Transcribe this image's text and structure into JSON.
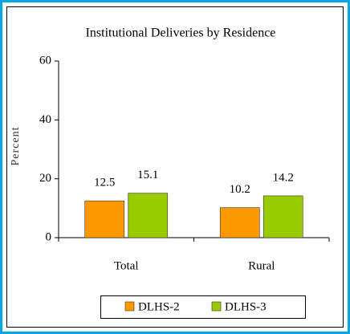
{
  "chart_data": {
    "type": "bar",
    "title": "Institutional Deliveries by Residence",
    "ylabel": "Percent",
    "categories": [
      "Total",
      "Rural"
    ],
    "series": [
      {
        "name": "DLHS-2",
        "color": "#ff9900",
        "values": [
          12.5,
          10.2
        ]
      },
      {
        "name": "DLHS-3",
        "color": "#99cc00",
        "values": [
          15.1,
          14.2
        ]
      }
    ],
    "ylim": [
      0,
      60
    ],
    "yticks": [
      0,
      20,
      40,
      60
    ],
    "grid": false,
    "legend": "bottom"
  }
}
